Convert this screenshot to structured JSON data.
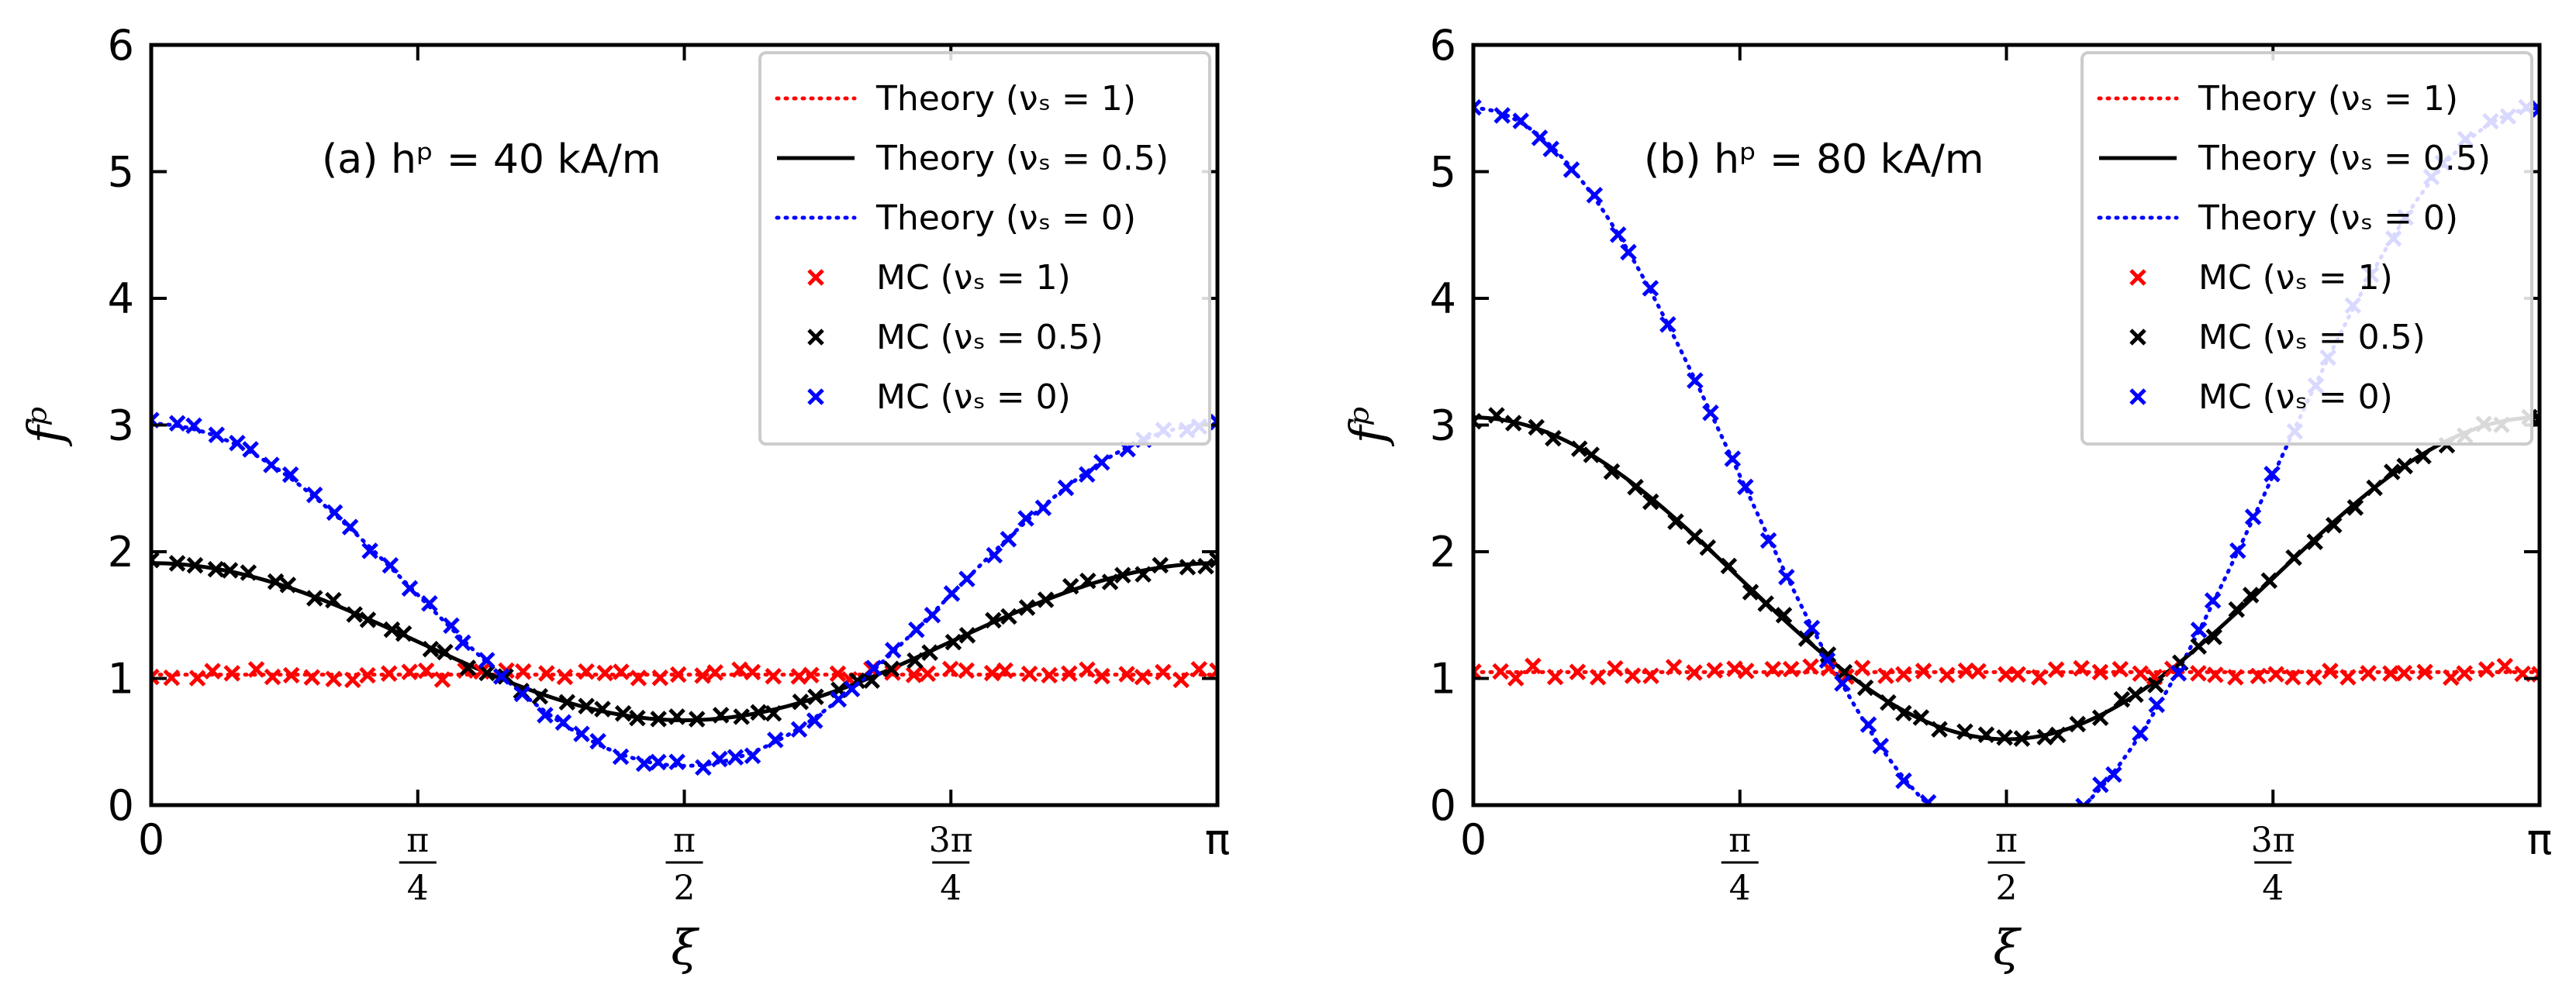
{
  "chart_data": [
    {
      "type": "line",
      "panel": "a",
      "annotation": "(a) hᵖ = 40 kA/m",
      "xlabel": "ξ",
      "ylabel": "fᵖ",
      "xlim": [
        0,
        3.1416
      ],
      "ylim": [
        0,
        6
      ],
      "x_ticks": [
        {
          "value": 0,
          "label": "0"
        },
        {
          "value": 0.7854,
          "num": "π",
          "den": "4"
        },
        {
          "value": 1.5708,
          "num": "π",
          "den": "2"
        },
        {
          "value": 2.3562,
          "num": "3π",
          "den": "4"
        },
        {
          "value": 3.1416,
          "label": "π"
        }
      ],
      "y_ticks": [
        0,
        1,
        2,
        3,
        4,
        5,
        6
      ],
      "legend_position": "top-right",
      "series": [
        {
          "name": "Theory (νₛ = 1)",
          "style": "dotted",
          "color": "#ff0000",
          "a": 1.03,
          "b": 0.0
        },
        {
          "name": "Theory (νₛ = 0.5)",
          "style": "solid",
          "color": "#000000",
          "a": 1.29,
          "b": 0.62
        },
        {
          "name": "Theory (νₛ = 0)",
          "style": "dotted",
          "color": "#0000ff",
          "a": 1.66,
          "b": 1.35
        },
        {
          "name": "MC (νₛ = 1)",
          "style": "marker",
          "color": "#ff0000",
          "a": 1.03,
          "b": 0.0,
          "jitter": 0.045,
          "seed": 11
        },
        {
          "name": "MC (νₛ = 0.5)",
          "style": "marker",
          "color": "#000000",
          "a": 1.29,
          "b": 0.62,
          "jitter": 0.035,
          "seed": 23
        },
        {
          "name": "MC (νₛ = 0)",
          "style": "marker",
          "color": "#0000ff",
          "a": 1.66,
          "b": 1.35,
          "jitter": 0.03,
          "seed": 37
        }
      ]
    },
    {
      "type": "line",
      "panel": "b",
      "annotation": "(b) hᵖ = 80 kA/m",
      "xlabel": "ξ",
      "ylabel": "fᵖ",
      "xlim": [
        0,
        3.1416
      ],
      "ylim": [
        0,
        6
      ],
      "x_ticks": [
        {
          "value": 0,
          "label": "0"
        },
        {
          "value": 0.7854,
          "num": "π",
          "den": "4"
        },
        {
          "value": 1.5708,
          "num": "π",
          "den": "2"
        },
        {
          "value": 2.3562,
          "num": "3π",
          "den": "4"
        },
        {
          "value": 3.1416,
          "label": "π"
        }
      ],
      "y_ticks": [
        0,
        1,
        2,
        3,
        4,
        5,
        6
      ],
      "legend_position": "top-right",
      "series": [
        {
          "name": "Theory (νₛ = 1)",
          "style": "dotted",
          "color": "#ff0000",
          "a": 1.05,
          "b": 0.0
        },
        {
          "name": "Theory (νₛ = 0.5)",
          "style": "solid",
          "color": "#000000",
          "a": 1.79,
          "b": 1.27
        },
        {
          "name": "Theory (νₛ = 0)",
          "style": "dotted",
          "color": "#0000ff",
          "a": 2.6,
          "b": 2.9
        },
        {
          "name": "MC (νₛ = 1)",
          "style": "marker",
          "color": "#ff0000",
          "a": 1.05,
          "b": 0.0,
          "jitter": 0.05,
          "seed": 5
        },
        {
          "name": "MC (νₛ = 0.5)",
          "style": "marker",
          "color": "#000000",
          "a": 1.79,
          "b": 1.27,
          "jitter": 0.035,
          "seed": 17
        },
        {
          "name": "MC (νₛ = 0)",
          "style": "marker",
          "color": "#0000ff",
          "a": 2.6,
          "b": 2.9,
          "jitter": 0.03,
          "seed": 29
        }
      ]
    }
  ]
}
